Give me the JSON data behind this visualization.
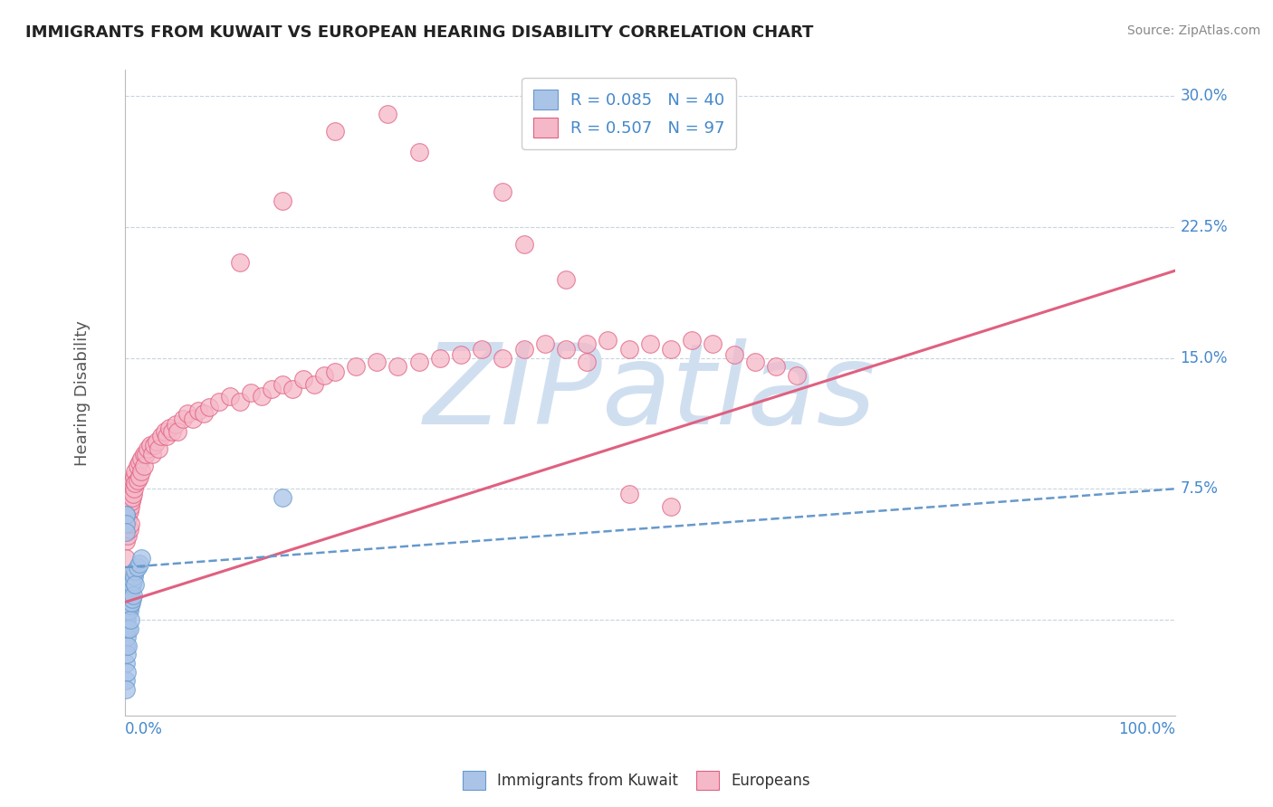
{
  "title": "IMMIGRANTS FROM KUWAIT VS EUROPEAN HEARING DISABILITY CORRELATION CHART",
  "source": "Source: ZipAtlas.com",
  "ylabel": "Hearing Disability",
  "xlim": [
    0.0,
    1.0
  ],
  "ylim": [
    -0.055,
    0.315
  ],
  "yticks": [
    0.0,
    0.075,
    0.15,
    0.225,
    0.3
  ],
  "ytick_labels": [
    "",
    "7.5%",
    "15.0%",
    "22.5%",
    "30.0%"
  ],
  "xtick_labels": [
    "0.0%",
    "100.0%"
  ],
  "legend_blue_label": "Immigrants from Kuwait",
  "legend_pink_label": "Europeans",
  "R_blue": 0.085,
  "N_blue": 40,
  "R_pink": 0.507,
  "N_pink": 97,
  "blue_color": "#aac4e8",
  "pink_color": "#f5b8c8",
  "blue_edge_color": "#6699cc",
  "pink_edge_color": "#e06080",
  "blue_line_color": "#6699cc",
  "pink_line_color": "#e06080",
  "watermark": "ZIPatlas",
  "watermark_color": "#d0dff0",
  "title_color": "#222222",
  "axis_label_color": "#4488cc",
  "legend_text_color": "#4488cc",
  "grid_color": "#c8d4e0",
  "blue_scatter_x": [
    0.001,
    0.001,
    0.001,
    0.001,
    0.001,
    0.001,
    0.001,
    0.002,
    0.002,
    0.002,
    0.002,
    0.002,
    0.003,
    0.003,
    0.003,
    0.003,
    0.004,
    0.004,
    0.004,
    0.005,
    0.005,
    0.005,
    0.006,
    0.006,
    0.007,
    0.007,
    0.008,
    0.008,
    0.009,
    0.01,
    0.01,
    0.012,
    0.014,
    0.016,
    0.001,
    0.001,
    0.001,
    0.001,
    0.15,
    0.001
  ],
  "blue_scatter_y": [
    0.005,
    0.01,
    0.0,
    -0.005,
    -0.015,
    -0.025,
    -0.035,
    0.005,
    0.0,
    -0.01,
    -0.02,
    -0.03,
    0.01,
    0.005,
    -0.005,
    -0.015,
    0.012,
    0.005,
    -0.005,
    0.015,
    0.008,
    0.0,
    0.018,
    0.01,
    0.02,
    0.012,
    0.022,
    0.014,
    0.025,
    0.028,
    0.02,
    0.03,
    0.032,
    0.035,
    0.06,
    0.06,
    0.055,
    0.05,
    0.07,
    -0.04
  ],
  "pink_scatter_x": [
    0.001,
    0.001,
    0.001,
    0.002,
    0.002,
    0.003,
    0.003,
    0.003,
    0.004,
    0.004,
    0.004,
    0.005,
    0.005,
    0.005,
    0.006,
    0.006,
    0.007,
    0.007,
    0.008,
    0.008,
    0.009,
    0.009,
    0.01,
    0.01,
    0.012,
    0.012,
    0.014,
    0.014,
    0.016,
    0.016,
    0.018,
    0.018,
    0.02,
    0.022,
    0.024,
    0.026,
    0.028,
    0.03,
    0.032,
    0.035,
    0.038,
    0.04,
    0.042,
    0.045,
    0.048,
    0.05,
    0.055,
    0.06,
    0.065,
    0.07,
    0.075,
    0.08,
    0.09,
    0.1,
    0.11,
    0.12,
    0.13,
    0.14,
    0.15,
    0.16,
    0.17,
    0.18,
    0.19,
    0.2,
    0.22,
    0.24,
    0.26,
    0.28,
    0.3,
    0.32,
    0.34,
    0.36,
    0.38,
    0.4,
    0.42,
    0.44,
    0.46,
    0.48,
    0.5,
    0.52,
    0.54,
    0.56,
    0.58,
    0.6,
    0.62,
    0.64,
    0.48,
    0.52,
    0.28,
    0.36,
    0.38,
    0.42,
    0.44,
    0.11,
    0.15,
    0.2,
    0.25
  ],
  "pink_scatter_y": [
    0.055,
    0.045,
    0.035,
    0.06,
    0.05,
    0.065,
    0.058,
    0.048,
    0.07,
    0.062,
    0.052,
    0.072,
    0.065,
    0.055,
    0.075,
    0.068,
    0.078,
    0.07,
    0.08,
    0.072,
    0.082,
    0.075,
    0.085,
    0.078,
    0.088,
    0.08,
    0.09,
    0.082,
    0.092,
    0.085,
    0.095,
    0.088,
    0.095,
    0.098,
    0.1,
    0.095,
    0.1,
    0.102,
    0.098,
    0.105,
    0.108,
    0.105,
    0.11,
    0.108,
    0.112,
    0.108,
    0.115,
    0.118,
    0.115,
    0.12,
    0.118,
    0.122,
    0.125,
    0.128,
    0.125,
    0.13,
    0.128,
    0.132,
    0.135,
    0.132,
    0.138,
    0.135,
    0.14,
    0.142,
    0.145,
    0.148,
    0.145,
    0.148,
    0.15,
    0.152,
    0.155,
    0.15,
    0.155,
    0.158,
    0.155,
    0.158,
    0.16,
    0.155,
    0.158,
    0.155,
    0.16,
    0.158,
    0.152,
    0.148,
    0.145,
    0.14,
    0.072,
    0.065,
    0.268,
    0.245,
    0.215,
    0.195,
    0.148,
    0.205,
    0.24,
    0.28,
    0.29
  ],
  "blue_trend_start_y": 0.03,
  "blue_trend_end_y": 0.075,
  "pink_trend_start_y": 0.01,
  "pink_trend_end_y": 0.2
}
